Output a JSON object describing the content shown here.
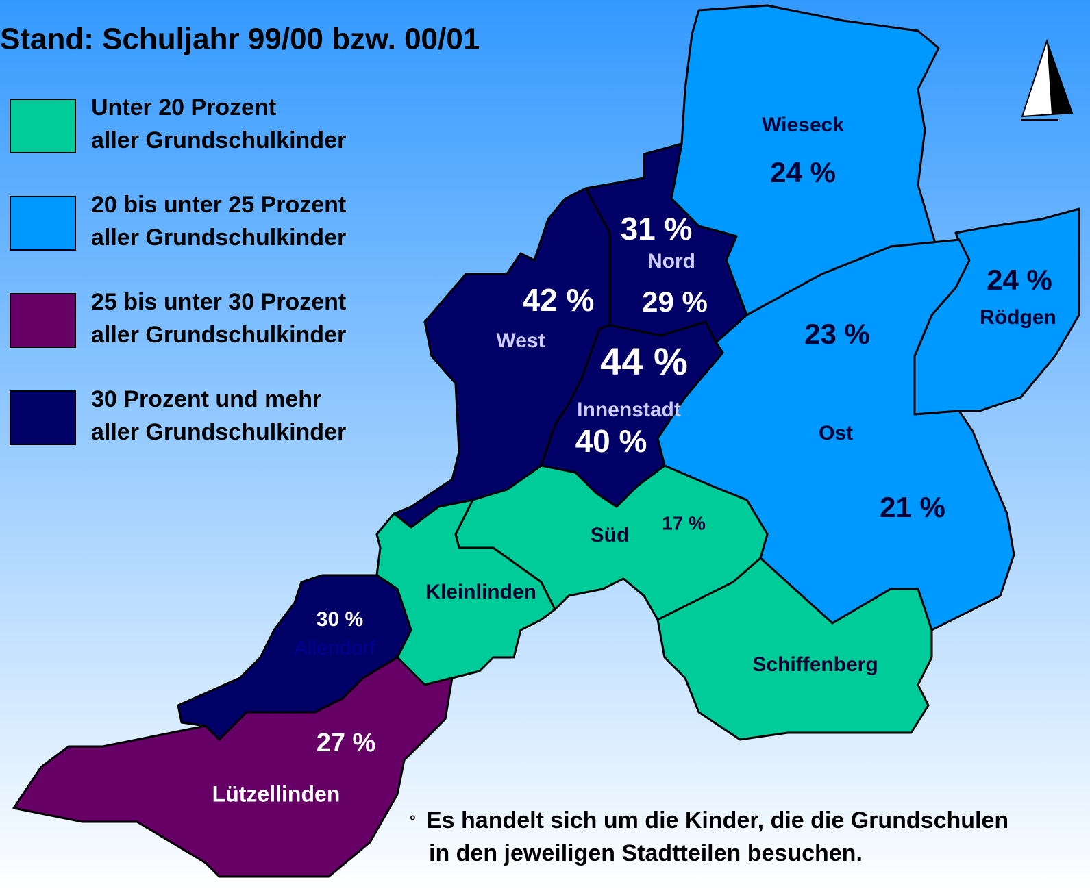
{
  "title": "Stand: Schuljahr 99/00 bzw. 00/01",
  "legend": [
    {
      "line1": "Unter 20 Prozent",
      "line2": "aller Grundschulkinder",
      "color": "#00cc99"
    },
    {
      "line1": "20 bis unter 25 Prozent",
      "line2": "aller Grundschulkinder",
      "color": "#0099ff"
    },
    {
      "line1": "25 bis unter 30 Prozent",
      "line2": "aller Grundschulkinder",
      "color": "#660066"
    },
    {
      "line1": "30 Prozent und mehr",
      "line2": "aller Grundschulkinder",
      "color": "#000066"
    }
  ],
  "districts": [
    {
      "name": "Wieseck",
      "labels": [
        "24 %"
      ]
    },
    {
      "name": "Nord",
      "labels": [
        "31 %",
        "29 %"
      ]
    },
    {
      "name": "West",
      "labels": [
        "42 %"
      ]
    },
    {
      "name": "Innenstadt",
      "labels": [
        "44 %",
        "40 %"
      ]
    },
    {
      "name": "Ost",
      "labels": [
        "23 %",
        "21 %"
      ]
    },
    {
      "name": "Rödgen",
      "labels": [
        "24 %"
      ]
    },
    {
      "name": "Süd",
      "labels": [
        "17 %"
      ]
    },
    {
      "name": "Kleinlinden"
    },
    {
      "name": "Schiffenberg"
    },
    {
      "name": "Allendorf",
      "labels": [
        "30 %"
      ]
    },
    {
      "name": "Lützellinden",
      "labels": [
        "27 %"
      ]
    }
  ],
  "footnote": {
    "bullet": "°",
    "line1": "Es handelt sich um die Kinder, die die Grundschulen",
    "line2": "in den jeweiligen Stadtteilen besuchen."
  }
}
